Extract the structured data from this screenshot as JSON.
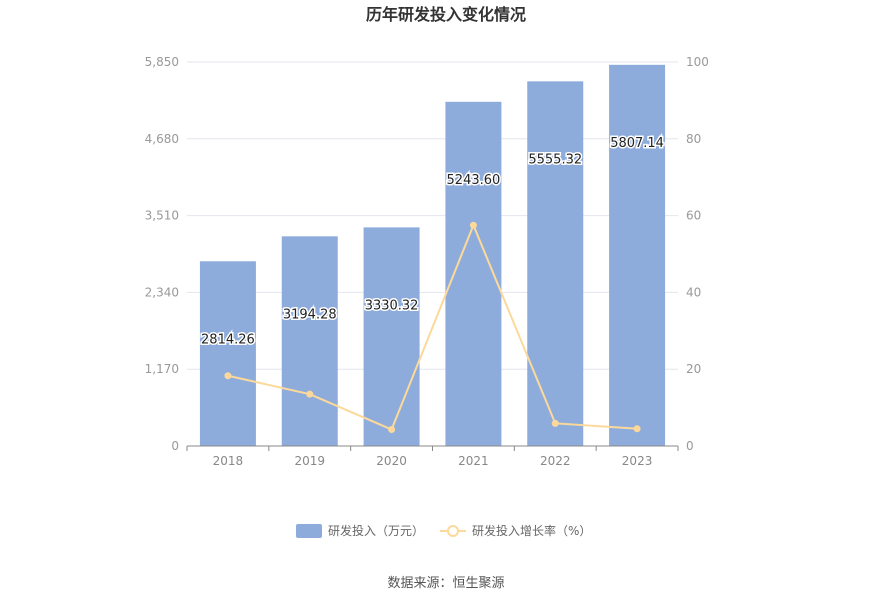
{
  "chart_data": {
    "type": "bar",
    "title": "历年研发投入变化情况",
    "categories": [
      "2018",
      "2019",
      "2020",
      "2021",
      "2022",
      "2023"
    ],
    "series": [
      {
        "name": "研发投入（万元）",
        "type": "bar",
        "axis": "left",
        "values": [
          2814.26,
          3194.28,
          3330.32,
          5243.6,
          5555.32,
          5807.14
        ],
        "labels": [
          "2814.26",
          "3194.28",
          "3330.32",
          "5243.60",
          "5555.32",
          "5807.14"
        ],
        "color": "#8eacdb"
      },
      {
        "name": "研发投入增长率（%）",
        "type": "line",
        "axis": "right",
        "values": [
          18.3,
          13.5,
          4.3,
          57.5,
          5.9,
          4.5
        ],
        "color": "#fcd99a"
      }
    ],
    "y_left": {
      "ylim": [
        0,
        5850
      ],
      "ticks": [
        "0",
        "1,170",
        "2,340",
        "3,510",
        "4,680",
        "5,850"
      ]
    },
    "y_right": {
      "ylim": [
        0,
        100
      ],
      "ticks": [
        "0",
        "20",
        "40",
        "60",
        "80",
        "100"
      ]
    },
    "grid": true,
    "legend_position": "bottom"
  },
  "source": "数据来源：恒生聚源"
}
